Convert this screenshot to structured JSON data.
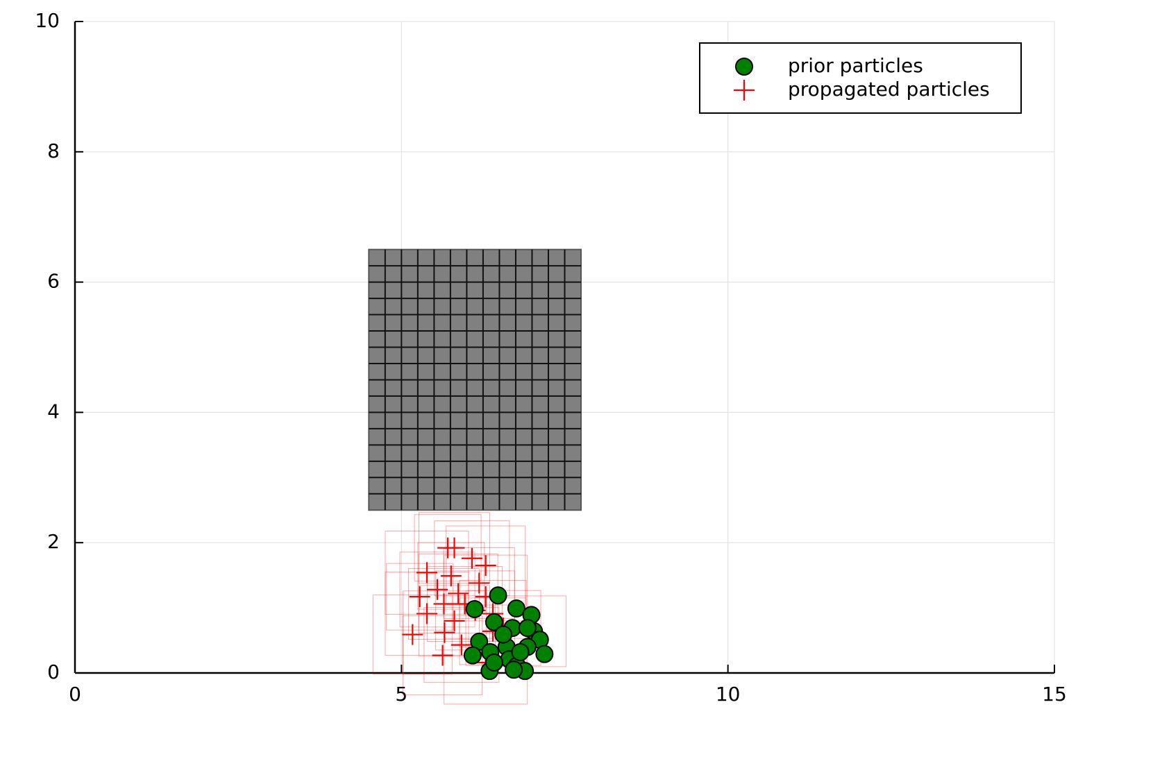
{
  "chart_data": {
    "type": "scatter",
    "xlim": [
      0,
      15
    ],
    "ylim": [
      0,
      10
    ],
    "xticks": [
      0,
      5,
      10,
      15
    ],
    "yticks": [
      0,
      2,
      4,
      6,
      8,
      10
    ],
    "grid": true,
    "legend": "top right",
    "obstacle": {
      "x": [
        4.5,
        7.75
      ],
      "y": [
        2.5,
        6.5
      ],
      "cell": 0.25,
      "color": "#808080"
    },
    "series": [
      {
        "name": "prior particles",
        "marker": "circle",
        "color": "#008000",
        "x": [
          6.48,
          6.76,
          6.99,
          6.42,
          6.12,
          6.7,
          7.03,
          7.12,
          6.19,
          6.36,
          6.61,
          6.93,
          6.09,
          7.19,
          6.65,
          6.77,
          6.35,
          6.89,
          6.72,
          6.42,
          6.82,
          6.56,
          6.93
        ],
        "values": [
          1.19,
          0.99,
          0.89,
          0.78,
          0.98,
          0.69,
          0.64,
          0.51,
          0.48,
          0.32,
          0.4,
          0.4,
          0.27,
          0.29,
          0.21,
          0.11,
          0.03,
          0.03,
          0.05,
          0.16,
          0.32,
          0.59,
          0.69
        ]
      },
      {
        "name": "propagated particles",
        "marker": "plus",
        "color": "#ff0000",
        "x": [
          5.71,
          5.81,
          6.08,
          6.29,
          5.39,
          5.76,
          6.19,
          5.55,
          5.87,
          6.29,
          5.28,
          5.65,
          5.97,
          6.13,
          5.39,
          6.4,
          5.81,
          6.56,
          5.17,
          5.66,
          6.4,
          6.98,
          5.92,
          5.63,
          6.29
        ],
        "values": [
          1.92,
          1.92,
          1.76,
          1.65,
          1.54,
          1.49,
          1.38,
          1.28,
          1.22,
          1.17,
          1.17,
          1.06,
          1.06,
          0.96,
          0.91,
          0.91,
          0.8,
          0.69,
          0.59,
          0.62,
          0.64,
          0.64,
          0.43,
          0.27,
          0.16
        ]
      }
    ]
  }
}
